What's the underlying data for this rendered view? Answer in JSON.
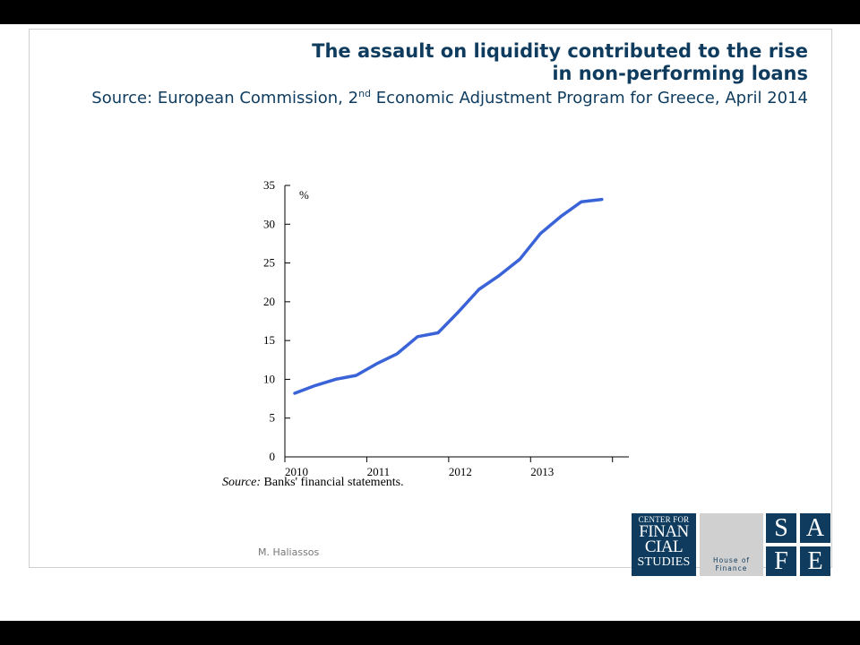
{
  "slide": {
    "title_line1": "The assault on liquidity contributed to the rise",
    "title_line2": "in non-performing loans",
    "subtitle_pre": "Source: European Commission, 2",
    "subtitle_sup": "nd",
    "subtitle_post": " Economic Adjustment Program for Greece, April 2014",
    "source_note_label": "Source:",
    "source_note_text": " Banks' financial statements.",
    "author": "M. Haliassos"
  },
  "logos": {
    "cfs_line1": "CENTER FOR",
    "cfs_line2": "FINAN",
    "cfs_line3": "CIAL",
    "cfs_line4": "STUDIES",
    "hof_line1": "House of",
    "hof_line2": "Finance",
    "safe_s": "S",
    "safe_a": "A",
    "safe_f": "F",
    "safe_e": "E"
  },
  "colors": {
    "line": "#3a63d8",
    "navy": "#0f3c5e"
  },
  "chart_data": {
    "type": "line",
    "title": "",
    "unit_label": "%",
    "xlabel": "",
    "ylabel": "",
    "ylim": [
      0,
      35
    ],
    "yticks": [
      0,
      5,
      10,
      15,
      20,
      25,
      30,
      35
    ],
    "xlim": [
      2010,
      2014.2
    ],
    "xticks": [
      2010,
      2011,
      2012,
      2013
    ],
    "series": [
      {
        "values": [
          [
            2010.12,
            8.2
          ],
          [
            2010.37,
            9.2
          ],
          [
            2010.62,
            10.0
          ],
          [
            2010.87,
            10.5
          ],
          [
            2011.12,
            12.0
          ],
          [
            2011.37,
            13.3
          ],
          [
            2011.62,
            15.5
          ],
          [
            2011.87,
            16.0
          ],
          [
            2012.12,
            18.7
          ],
          [
            2012.37,
            21.6
          ],
          [
            2012.62,
            23.4
          ],
          [
            2012.87,
            25.5
          ],
          [
            2013.12,
            28.8
          ],
          [
            2013.37,
            31.0
          ],
          [
            2013.62,
            32.9
          ],
          [
            2013.87,
            33.2
          ]
        ]
      }
    ]
  }
}
